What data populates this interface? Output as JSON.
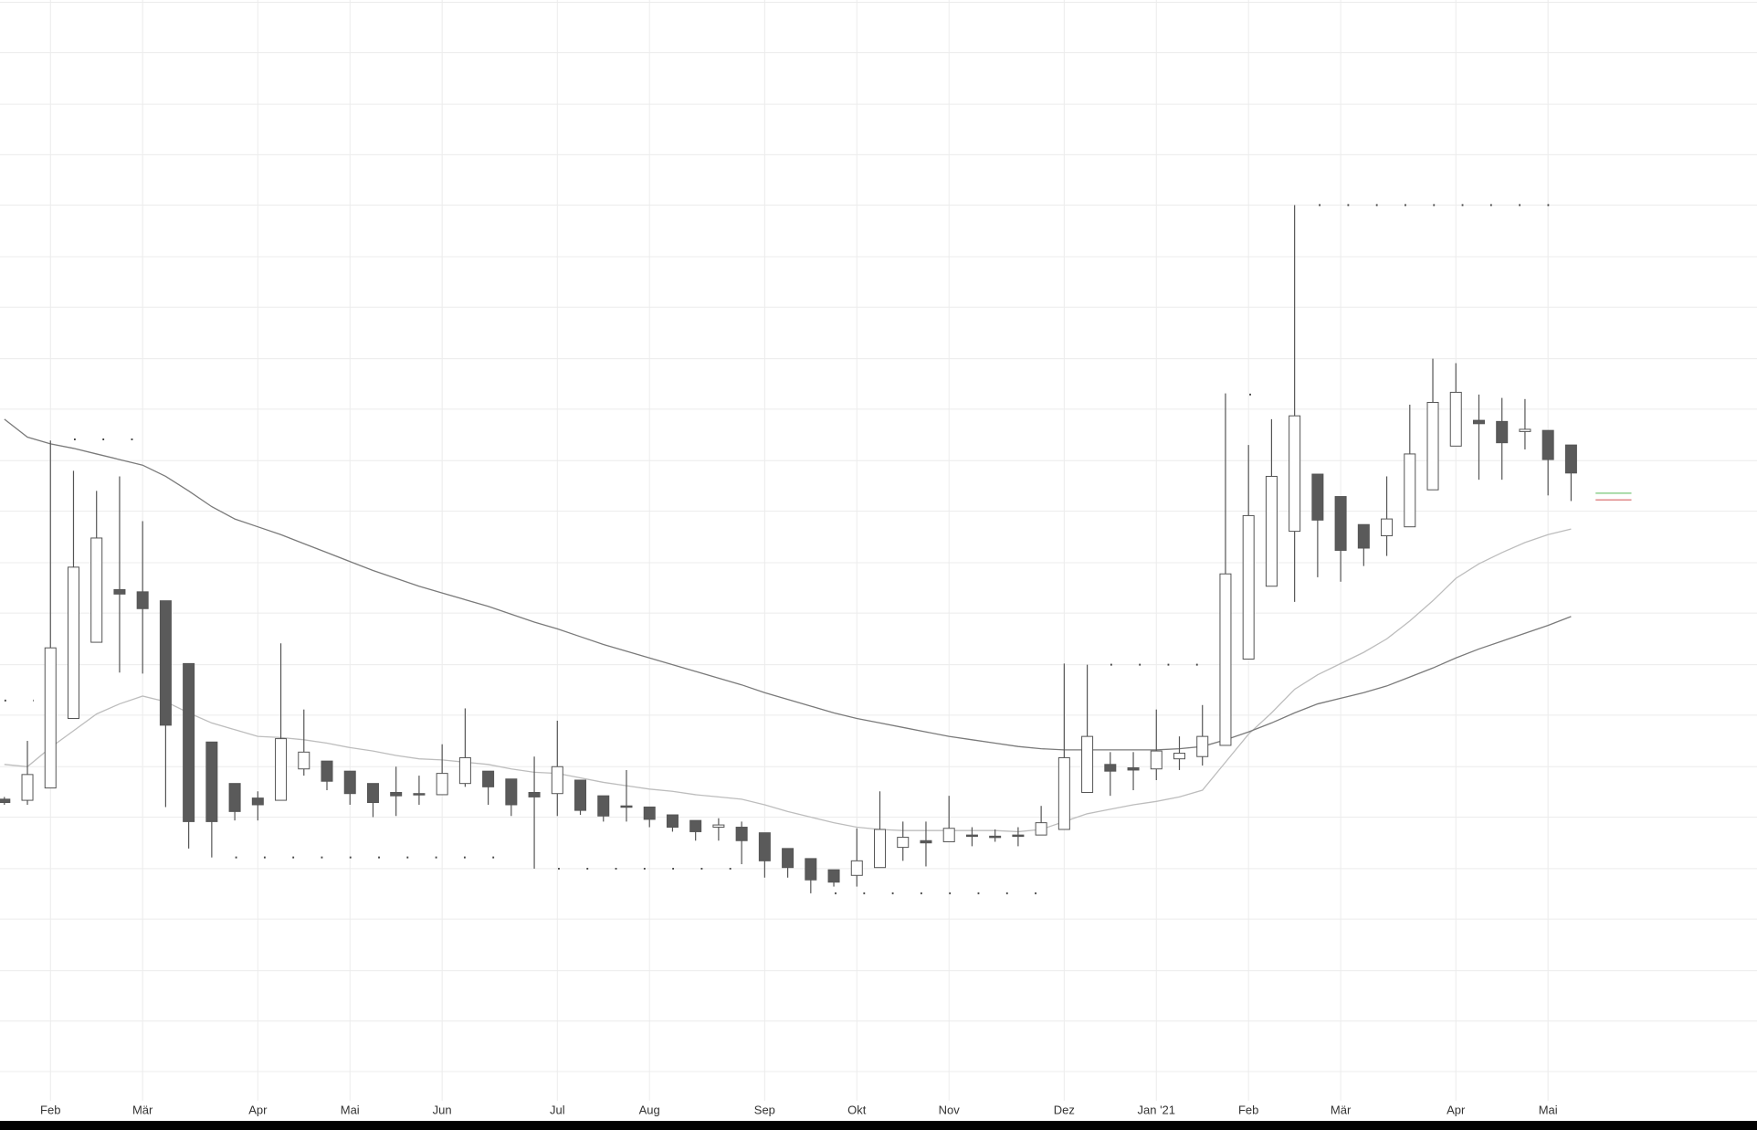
{
  "chart_data": {
    "type": "candlestick",
    "xlim": [
      -0.19,
      76.07
    ],
    "ylim": [
      0,
      1000
    ],
    "grid": true,
    "up_color": "#ffffff",
    "down_color": "#5a5a5a",
    "xticks": [
      {
        "value": 2,
        "label": "Feb"
      },
      {
        "value": 6,
        "label": "Mär"
      },
      {
        "value": 11,
        "label": "Apr"
      },
      {
        "value": 15,
        "label": "Mai"
      },
      {
        "value": 19,
        "label": "Jun"
      },
      {
        "value": 24,
        "label": "Jul"
      },
      {
        "value": 28,
        "label": "Aug"
      },
      {
        "value": 33,
        "label": "Sep"
      },
      {
        "value": 37,
        "label": "Okt"
      },
      {
        "value": 41,
        "label": "Nov"
      },
      {
        "value": 46,
        "label": "Dez"
      },
      {
        "value": 50,
        "label": "Jan '21"
      },
      {
        "value": 54,
        "label": "Feb"
      },
      {
        "value": 58,
        "label": "Mär"
      },
      {
        "value": 63,
        "label": "Apr"
      },
      {
        "value": 67,
        "label": "Mai"
      }
    ],
    "yticks": [
      44,
      89,
      134,
      180,
      225,
      271,
      316,
      362,
      407,
      453,
      498,
      544,
      589,
      635,
      680,
      726,
      771,
      817,
      862,
      907,
      953,
      998
    ],
    "open": [
      287,
      286,
      297,
      359,
      427,
      474,
      472,
      464,
      408,
      338,
      301,
      288,
      286,
      314,
      321,
      312,
      301,
      293,
      292,
      291,
      301,
      312,
      305,
      293,
      292,
      304,
      290,
      281,
      280,
      273,
      268,
      262,
      262,
      257,
      243,
      234,
      224,
      219,
      226,
      244,
      250,
      249,
      255,
      254,
      255,
      255,
      260,
      293,
      318,
      315,
      314,
      323,
      325,
      335,
      412,
      477,
      526,
      577,
      557,
      532,
      522,
      530,
      563,
      602,
      625,
      624,
      615,
      616,
      603
    ],
    "high": [
      289,
      339,
      607,
      580,
      562,
      575,
      535,
      464,
      408,
      338,
      301,
      294,
      426,
      367,
      321,
      312,
      301,
      316,
      308,
      336,
      368,
      312,
      305,
      325,
      357,
      304,
      290,
      313,
      280,
      273,
      268,
      270,
      267,
      257,
      243,
      234,
      224,
      261,
      294,
      267,
      267,
      290,
      262,
      260,
      262,
      281,
      408,
      407,
      329,
      329,
      367,
      343,
      371,
      649,
      603,
      626,
      817,
      577,
      557,
      532,
      575,
      639,
      680,
      676,
      648,
      645,
      644,
      616,
      603
    ],
    "low": [
      282,
      282,
      297,
      359,
      427,
      400,
      399,
      280,
      243,
      235,
      268,
      268,
      286,
      308,
      295,
      282,
      271,
      272,
      282,
      291,
      298,
      282,
      272,
      225,
      272,
      273,
      267,
      267,
      262,
      258,
      250,
      250,
      229,
      217,
      217,
      203,
      209,
      209,
      226,
      232,
      227,
      249,
      245,
      249,
      245,
      255,
      260,
      293,
      290,
      295,
      304,
      313,
      317,
      335,
      412,
      477,
      463,
      485,
      481,
      495,
      504,
      530,
      563,
      602,
      572,
      572,
      599,
      558,
      553
    ],
    "close": [
      284,
      309,
      422,
      494,
      520,
      470,
      457,
      353,
      267,
      267,
      276,
      282,
      341,
      329,
      303,
      292,
      284,
      290,
      291,
      310,
      324,
      298,
      282,
      289,
      316,
      277,
      272,
      280,
      269,
      262,
      258,
      264,
      250,
      232,
      226,
      215,
      213,
      232,
      260,
      253,
      248,
      261,
      254,
      253,
      254,
      266,
      324,
      343,
      312,
      313,
      330,
      328,
      343,
      488,
      540,
      575,
      629,
      536,
      509,
      511,
      537,
      595,
      641,
      650,
      622,
      605,
      617,
      590,
      578
    ],
    "series": [
      {
        "color": "#bdbdbd",
        "values": [
          318,
          316,
          333,
          348,
          363,
          372,
          379,
          374,
          364,
          355,
          349,
          343,
          342,
          340,
          337,
          333,
          330,
          326,
          323,
          322,
          320,
          318,
          314,
          311,
          310,
          306,
          302,
          299,
          296,
          294,
          291,
          289,
          287,
          282,
          276,
          271,
          266,
          262,
          260,
          259,
          259,
          259,
          259,
          259,
          258,
          260,
          267,
          274,
          278,
          282,
          285,
          289,
          295,
          320,
          345,
          364,
          385,
          398,
          408,
          418,
          430,
          446,
          464,
          484,
          497,
          507,
          516,
          523,
          528
        ]
      },
      {
        "color": "#7a7a7a",
        "values": [
          626,
          610,
          604,
          600,
          595,
          590,
          585,
          575,
          562,
          548,
          537,
          530,
          523,
          515,
          507,
          499,
          491,
          484,
          477,
          471,
          465,
          459,
          452,
          445,
          439,
          432,
          425,
          419,
          413,
          407,
          401,
          395,
          389,
          382,
          376,
          370,
          364,
          359,
          355,
          351,
          347,
          343,
          340,
          337,
          334,
          332,
          331,
          331,
          331,
          331,
          331,
          332,
          334,
          340,
          347,
          355,
          364,
          372,
          377,
          382,
          388,
          396,
          404,
          413,
          421,
          428,
          435,
          442,
          450
        ]
      }
    ]
  }
}
